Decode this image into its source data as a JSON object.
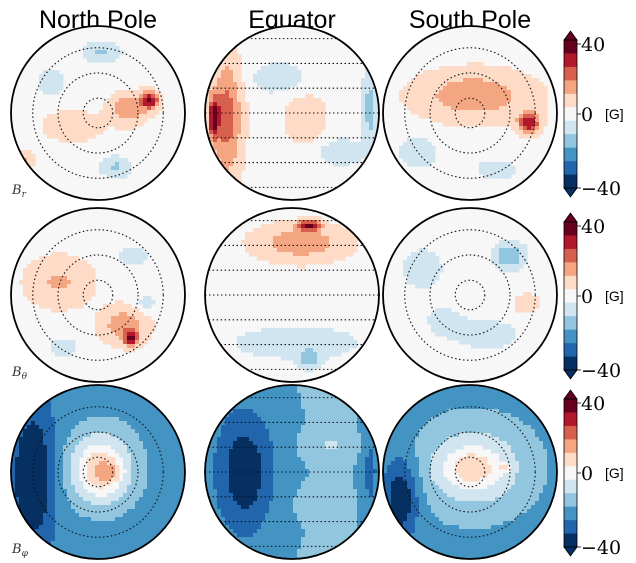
{
  "chart_data": {
    "type": "heatmap",
    "description_free": true,
    "columns": [
      "North Pole",
      "Equator",
      "South Pole"
    ],
    "rows": [
      {
        "label": "B",
        "sub": "r"
      },
      {
        "label": "B",
        "sub": "θ"
      },
      {
        "label": "B",
        "sub": "φ"
      }
    ],
    "colorbar": {
      "min": -40,
      "max": 40,
      "ticks": [
        "40",
        "0",
        "−40"
      ],
      "unit": "[G]",
      "levels": [
        "#053061",
        "#2166ac",
        "#4393c3",
        "#92c5de",
        "#d1e5f0",
        "#f7f7f7",
        "#fddbc7",
        "#f4a582",
        "#d6604d",
        "#b2182b",
        "#67001f"
      ]
    },
    "colormap_name": "RdBu_r",
    "panels": [
      {
        "row": 0,
        "col": 0,
        "blobs": [
          {
            "x": 0.35,
            "y": -0.05,
            "v": 18,
            "rx": 0.22,
            "ry": 0.18
          },
          {
            "x": 0.6,
            "y": -0.15,
            "v": 32,
            "rx": 0.1,
            "ry": 0.1
          },
          {
            "x": -0.3,
            "y": 0.15,
            "v": 10,
            "rx": 0.35,
            "ry": 0.18
          },
          {
            "x": 0.05,
            "y": -0.7,
            "v": -12,
            "rx": 0.2,
            "ry": 0.12
          },
          {
            "x": -0.55,
            "y": -0.35,
            "v": -10,
            "rx": 0.15,
            "ry": 0.15
          },
          {
            "x": 0.2,
            "y": 0.62,
            "v": -12,
            "rx": 0.18,
            "ry": 0.12
          },
          {
            "x": -0.85,
            "y": 0.55,
            "v": 12,
            "rx": 0.12,
            "ry": 0.12
          }
        ]
      },
      {
        "row": 0,
        "col": 1,
        "blobs": [
          {
            "x": -0.75,
            "y": 0.05,
            "v": 22,
            "rx": 0.18,
            "ry": 0.7
          },
          {
            "x": -0.9,
            "y": 0.05,
            "v": 32,
            "rx": 0.06,
            "ry": 0.22
          },
          {
            "x": 0.15,
            "y": 0.05,
            "v": 10,
            "rx": 0.25,
            "ry": 0.3
          },
          {
            "x": -0.15,
            "y": -0.4,
            "v": -8,
            "rx": 0.35,
            "ry": 0.2
          },
          {
            "x": 0.55,
            "y": 0.45,
            "v": -10,
            "rx": 0.25,
            "ry": 0.15
          },
          {
            "x": 0.9,
            "y": -0.05,
            "v": -14,
            "rx": 0.1,
            "ry": 0.45
          }
        ]
      },
      {
        "row": 0,
        "col": 2,
        "blobs": [
          {
            "x": 0.05,
            "y": -0.2,
            "v": 16,
            "rx": 0.7,
            "ry": 0.3
          },
          {
            "x": 0.68,
            "y": 0.12,
            "v": 30,
            "rx": 0.12,
            "ry": 0.12
          },
          {
            "x": -0.6,
            "y": 0.45,
            "v": -8,
            "rx": 0.25,
            "ry": 0.2
          },
          {
            "x": 0.3,
            "y": 0.65,
            "v": -8,
            "rx": 0.25,
            "ry": 0.12
          }
        ]
      },
      {
        "row": 1,
        "col": 0,
        "blobs": [
          {
            "x": -0.45,
            "y": -0.15,
            "v": 12,
            "rx": 0.4,
            "ry": 0.3
          },
          {
            "x": 0.3,
            "y": 0.35,
            "v": 16,
            "rx": 0.28,
            "ry": 0.22
          },
          {
            "x": 0.38,
            "y": 0.5,
            "v": 32,
            "rx": 0.08,
            "ry": 0.08
          },
          {
            "x": 0.4,
            "y": -0.45,
            "v": -8,
            "rx": 0.18,
            "ry": 0.12
          },
          {
            "x": 0.55,
            "y": 0.1,
            "v": -8,
            "rx": 0.12,
            "ry": 0.1
          },
          {
            "x": -0.4,
            "y": 0.6,
            "v": -8,
            "rx": 0.18,
            "ry": 0.12
          }
        ]
      },
      {
        "row": 1,
        "col": 1,
        "blobs": [
          {
            "x": 0.1,
            "y": -0.6,
            "v": 16,
            "rx": 0.55,
            "ry": 0.22
          },
          {
            "x": 0.2,
            "y": -0.8,
            "v": 30,
            "rx": 0.12,
            "ry": 0.06
          },
          {
            "x": 0.05,
            "y": 0.55,
            "v": -10,
            "rx": 0.7,
            "ry": 0.18
          },
          {
            "x": 0.2,
            "y": 0.75,
            "v": -14,
            "rx": 0.12,
            "ry": 0.1
          }
        ]
      },
      {
        "row": 1,
        "col": 2,
        "blobs": [
          {
            "x": 0.45,
            "y": -0.45,
            "v": -18,
            "rx": 0.18,
            "ry": 0.15
          },
          {
            "x": -0.55,
            "y": -0.3,
            "v": -8,
            "rx": 0.25,
            "ry": 0.25
          },
          {
            "x": 0.2,
            "y": 0.45,
            "v": -8,
            "rx": 0.35,
            "ry": 0.18
          },
          {
            "x": 0.65,
            "y": 0.1,
            "v": 10,
            "rx": 0.15,
            "ry": 0.12
          },
          {
            "x": -0.3,
            "y": 0.3,
            "v": -6,
            "rx": 0.25,
            "ry": 0.2
          }
        ]
      },
      {
        "row": 2,
        "col": 0,
        "base": -22,
        "blobs": [
          {
            "x": 0.05,
            "y": -0.05,
            "v": 22,
            "rx": 0.4,
            "ry": 0.45
          },
          {
            "x": 0.0,
            "y": 0.0,
            "v": 12,
            "rx": 0.25,
            "ry": 0.3
          },
          {
            "x": -0.75,
            "y": 0.05,
            "v": -20,
            "rx": 0.25,
            "ry": 0.8
          },
          {
            "x": 0.15,
            "y": 0.0,
            "v": 10,
            "rx": 0.12,
            "ry": 0.1
          }
        ]
      },
      {
        "row": 2,
        "col": 1,
        "base": -18,
        "blobs": [
          {
            "x": -0.55,
            "y": 0.0,
            "v": -20,
            "rx": 0.35,
            "ry": 0.75
          },
          {
            "x": 0.45,
            "y": -0.3,
            "v": 8,
            "rx": 0.25,
            "ry": 0.15
          },
          {
            "x": 0.35,
            "y": 0.35,
            "v": 6,
            "rx": 0.25,
            "ry": 0.15
          },
          {
            "x": 0.9,
            "y": 0.0,
            "v": -10,
            "rx": 0.1,
            "ry": 0.5
          }
        ]
      },
      {
        "row": 2,
        "col": 2,
        "base": -20,
        "blobs": [
          {
            "x": 0.05,
            "y": -0.05,
            "v": 20,
            "rx": 0.55,
            "ry": 0.45
          },
          {
            "x": 0.0,
            "y": -0.05,
            "v": 10,
            "rx": 0.3,
            "ry": 0.2
          },
          {
            "x": 0.4,
            "y": -0.05,
            "v": 10,
            "rx": 0.08,
            "ry": 0.05
          },
          {
            "x": -0.8,
            "y": 0.3,
            "v": -20,
            "rx": 0.2,
            "ry": 0.45
          }
        ]
      }
    ]
  }
}
